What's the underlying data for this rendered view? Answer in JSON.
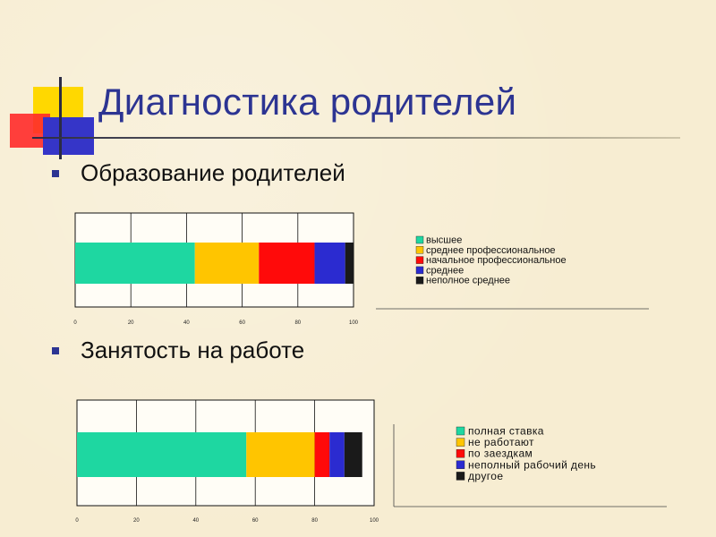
{
  "slide": {
    "title": "Диагностика родителей",
    "bullets": [
      {
        "text": "Образование родителей"
      },
      {
        "text": "Занятость на работе"
      }
    ]
  },
  "colors": {
    "title": "#2c3492",
    "series": [
      "#1ed7a1",
      "#ffc500",
      "#ff0a0a",
      "#2b2bd0",
      "#1a1a1a"
    ]
  },
  "chart_data": [
    {
      "type": "bar",
      "orientation": "horizontal",
      "stacked": true,
      "xlim": [
        0,
        100
      ],
      "ticks": [
        "0",
        "20",
        "40",
        "60",
        "80",
        "100"
      ],
      "grid": true,
      "legend_position": "right",
      "series": [
        {
          "name": "высшее",
          "value": 43
        },
        {
          "name": "среднее профессиональное",
          "value": 23
        },
        {
          "name": "начальное профессиональное",
          "value": 20
        },
        {
          "name": "среднее",
          "value": 11
        },
        {
          "name": "неполное среднее",
          "value": 3
        }
      ]
    },
    {
      "type": "bar",
      "orientation": "horizontal",
      "stacked": true,
      "xlim": [
        0,
        100
      ],
      "ticks": [
        "0",
        "20",
        "40",
        "60",
        "80",
        "100"
      ],
      "grid": true,
      "legend_position": "right",
      "series": [
        {
          "name": "полная ставка",
          "value": 57
        },
        {
          "name": "не работают",
          "value": 23
        },
        {
          "name": "по заездкам",
          "value": 5
        },
        {
          "name": "неполный рабочий день",
          "value": 5
        },
        {
          "name": "другое",
          "value": 6
        }
      ]
    }
  ]
}
